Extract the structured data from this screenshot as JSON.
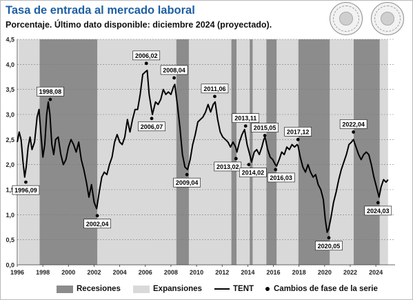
{
  "header": {
    "title": "Tasa de entrada al mercado laboral",
    "subtitle": "Porcentaje. Último dato disponible: diciembre 2024 (proyectado)."
  },
  "logos": [
    {
      "name": "seal-left",
      "text": "CÁMARA DE COMERCIO DE BOGOTÁ"
    },
    {
      "name": "seal-right",
      "text": "CÁMARA DE COMERCIO DE BOGOTÁ"
    }
  ],
  "legend": {
    "recessions": "Recesiones",
    "expansions": "Expansiones",
    "series": "TENT",
    "turning_points": "Cambios de fase de la serie"
  },
  "colors": {
    "title": "#1e5fa3",
    "recession": "#8c8c8c",
    "expansion": "#d9d9d9",
    "line": "#000000"
  },
  "chart_data": {
    "type": "line",
    "title": "Tasa de entrada al mercado laboral",
    "subtitle": "Porcentaje. Último dato disponible: diciembre 2024 (proyectado).",
    "xlim": [
      1996,
      2025.5
    ],
    "ylim": [
      0,
      4.5
    ],
    "x_ticks": [
      "1996",
      "1998",
      "2000",
      "2002",
      "2004",
      "2006",
      "2008",
      "2010",
      "2012",
      "2014",
      "2016",
      "2018",
      "2020",
      "2022",
      "2024"
    ],
    "y_ticks": [
      "0,0",
      "0,5",
      "1,0",
      "1,5",
      "2,0",
      "2,5",
      "3,0",
      "3,5",
      "4,0",
      "4,5"
    ],
    "grid": "horizontal",
    "legend_position": "bottom",
    "series": [
      {
        "name": "TENT",
        "color": "#000000",
        "points": [
          [
            1996.0,
            2.45
          ],
          [
            1996.15,
            2.65
          ],
          [
            1996.3,
            2.5
          ],
          [
            1996.45,
            2.05
          ],
          [
            1996.58,
            1.75
          ],
          [
            1996.7,
            1.95
          ],
          [
            1996.85,
            2.35
          ],
          [
            1997.0,
            2.55
          ],
          [
            1997.15,
            2.3
          ],
          [
            1997.35,
            2.45
          ],
          [
            1997.55,
            2.95
          ],
          [
            1997.7,
            3.1
          ],
          [
            1997.85,
            2.6
          ],
          [
            1998.0,
            2.15
          ],
          [
            1998.15,
            2.4
          ],
          [
            1998.3,
            3.0
          ],
          [
            1998.42,
            3.25
          ],
          [
            1998.55,
            3.0
          ],
          [
            1998.7,
            2.4
          ],
          [
            1998.85,
            2.2
          ],
          [
            1999.0,
            2.5
          ],
          [
            1999.2,
            2.55
          ],
          [
            1999.4,
            2.2
          ],
          [
            1999.6,
            2.0
          ],
          [
            1999.8,
            2.1
          ],
          [
            2000.0,
            2.35
          ],
          [
            2000.2,
            2.5
          ],
          [
            2000.4,
            2.4
          ],
          [
            2000.6,
            2.25
          ],
          [
            2000.8,
            2.45
          ],
          [
            2001.0,
            2.1
          ],
          [
            2001.2,
            1.9
          ],
          [
            2001.4,
            1.65
          ],
          [
            2001.6,
            1.35
          ],
          [
            2001.8,
            1.6
          ],
          [
            2002.0,
            1.25
          ],
          [
            2002.2,
            1.12
          ],
          [
            2002.4,
            1.45
          ],
          [
            2002.6,
            1.75
          ],
          [
            2002.8,
            1.85
          ],
          [
            2003.0,
            1.8
          ],
          [
            2003.2,
            2.0
          ],
          [
            2003.4,
            2.15
          ],
          [
            2003.6,
            2.45
          ],
          [
            2003.8,
            2.6
          ],
          [
            2004.0,
            2.45
          ],
          [
            2004.2,
            2.4
          ],
          [
            2004.4,
            2.55
          ],
          [
            2004.6,
            2.9
          ],
          [
            2004.8,
            2.65
          ],
          [
            2005.0,
            2.9
          ],
          [
            2005.2,
            3.1
          ],
          [
            2005.4,
            3.1
          ],
          [
            2005.6,
            3.4
          ],
          [
            2005.8,
            3.8
          ],
          [
            2006.0,
            3.85
          ],
          [
            2006.15,
            3.88
          ],
          [
            2006.3,
            3.4
          ],
          [
            2006.55,
            3.0
          ],
          [
            2006.8,
            3.25
          ],
          [
            2007.0,
            3.2
          ],
          [
            2007.2,
            3.3
          ],
          [
            2007.4,
            3.5
          ],
          [
            2007.6,
            3.4
          ],
          [
            2007.8,
            3.45
          ],
          [
            2008.0,
            3.4
          ],
          [
            2008.2,
            3.55
          ],
          [
            2008.3,
            3.6
          ],
          [
            2008.5,
            3.2
          ],
          [
            2008.7,
            2.75
          ],
          [
            2008.9,
            2.2
          ],
          [
            2009.1,
            1.95
          ],
          [
            2009.3,
            1.9
          ],
          [
            2009.5,
            2.1
          ],
          [
            2009.7,
            2.4
          ],
          [
            2009.9,
            2.6
          ],
          [
            2010.1,
            2.85
          ],
          [
            2010.3,
            2.9
          ],
          [
            2010.5,
            2.95
          ],
          [
            2010.7,
            3.05
          ],
          [
            2010.9,
            3.2
          ],
          [
            2011.1,
            3.05
          ],
          [
            2011.3,
            3.2
          ],
          [
            2011.45,
            3.25
          ],
          [
            2011.65,
            2.9
          ],
          [
            2011.85,
            2.65
          ],
          [
            2012.05,
            2.55
          ],
          [
            2012.25,
            2.5
          ],
          [
            2012.45,
            2.45
          ],
          [
            2012.65,
            2.35
          ],
          [
            2012.85,
            2.45
          ],
          [
            2013.05,
            2.35
          ],
          [
            2013.15,
            2.25
          ],
          [
            2013.35,
            2.45
          ],
          [
            2013.55,
            2.6
          ],
          [
            2013.75,
            2.7
          ],
          [
            2013.95,
            2.4
          ],
          [
            2014.15,
            2.2
          ],
          [
            2014.3,
            2.05
          ],
          [
            2014.5,
            2.25
          ],
          [
            2014.7,
            2.3
          ],
          [
            2014.9,
            2.2
          ],
          [
            2015.1,
            2.35
          ],
          [
            2015.25,
            2.5
          ],
          [
            2015.35,
            2.55
          ],
          [
            2015.55,
            2.3
          ],
          [
            2015.75,
            2.15
          ],
          [
            2015.95,
            2.1
          ],
          [
            2016.15,
            2.0
          ],
          [
            2016.25,
            1.97
          ],
          [
            2016.45,
            2.1
          ],
          [
            2016.65,
            2.25
          ],
          [
            2016.85,
            2.2
          ],
          [
            2017.05,
            2.35
          ],
          [
            2017.25,
            2.3
          ],
          [
            2017.45,
            2.4
          ],
          [
            2017.65,
            2.35
          ],
          [
            2017.85,
            2.4
          ],
          [
            2017.92,
            2.38
          ],
          [
            2018.1,
            2.15
          ],
          [
            2018.3,
            1.95
          ],
          [
            2018.5,
            1.85
          ],
          [
            2018.7,
            2.0
          ],
          [
            2018.9,
            1.85
          ],
          [
            2019.1,
            1.75
          ],
          [
            2019.3,
            1.8
          ],
          [
            2019.5,
            1.6
          ],
          [
            2019.7,
            1.5
          ],
          [
            2019.9,
            1.3
          ],
          [
            2020.05,
            0.9
          ],
          [
            2020.2,
            0.65
          ],
          [
            2020.32,
            0.72
          ],
          [
            2020.5,
            0.95
          ],
          [
            2020.7,
            1.25
          ],
          [
            2020.9,
            1.45
          ],
          [
            2021.1,
            1.7
          ],
          [
            2021.3,
            1.9
          ],
          [
            2021.5,
            2.05
          ],
          [
            2021.7,
            2.2
          ],
          [
            2021.9,
            2.4
          ],
          [
            2022.1,
            2.45
          ],
          [
            2022.25,
            2.5
          ],
          [
            2022.45,
            2.35
          ],
          [
            2022.65,
            2.2
          ],
          [
            2022.85,
            2.1
          ],
          [
            2023.05,
            2.2
          ],
          [
            2023.25,
            2.25
          ],
          [
            2023.45,
            2.2
          ],
          [
            2023.65,
            2.0
          ],
          [
            2023.85,
            1.75
          ],
          [
            2024.05,
            1.55
          ],
          [
            2024.25,
            1.35
          ],
          [
            2024.4,
            1.55
          ],
          [
            2024.6,
            1.7
          ],
          [
            2024.8,
            1.65
          ],
          [
            2024.95,
            1.7
          ]
        ]
      }
    ],
    "recessions": [
      [
        1997.75,
        2002.25
      ],
      [
        2008.42,
        2009.4
      ],
      [
        2012.72,
        2013.12
      ],
      [
        2014.15,
        2014.38
      ],
      [
        2015.45,
        2016.25
      ],
      [
        2017.95,
        2020.4
      ],
      [
        2022.27,
        2024.3
      ]
    ],
    "expansions": [
      [
        1996.1,
        1997.75
      ],
      [
        2002.25,
        2008.42
      ],
      [
        2009.4,
        2012.72
      ],
      [
        2013.12,
        2014.15
      ],
      [
        2014.38,
        2015.45
      ],
      [
        2016.25,
        2017.95
      ],
      [
        2020.4,
        2022.27
      ],
      [
        2024.3,
        2024.95
      ]
    ],
    "turning_points": [
      {
        "label": "1996,09",
        "x": 1996.67,
        "y": 1.65
      },
      {
        "label": "1998,08",
        "x": 1998.58,
        "y": 3.3
      },
      {
        "label": "2002,04",
        "x": 2002.25,
        "y": 0.98
      },
      {
        "label": "2006,02",
        "x": 2006.08,
        "y": 4.02
      },
      {
        "label": "2006,07",
        "x": 2006.5,
        "y": 2.92
      },
      {
        "label": "2008,04",
        "x": 2008.25,
        "y": 3.73
      },
      {
        "label": "2009,04",
        "x": 2009.25,
        "y": 1.8
      },
      {
        "label": "2011,06",
        "x": 2011.42,
        "y": 3.36
      },
      {
        "label": "2013,02",
        "x": 2013.08,
        "y": 2.12
      },
      {
        "label": "2013,11",
        "x": 2013.83,
        "y": 2.77
      },
      {
        "label": "2014,02",
        "x": 2014.08,
        "y": 2.0
      },
      {
        "label": "2015,05",
        "x": 2015.33,
        "y": 2.58
      },
      {
        "label": "2016,03",
        "x": 2016.17,
        "y": 1.9
      },
      {
        "label": "2017,12",
        "x": 2017.92,
        "y": 2.5
      },
      {
        "label": "2020,05",
        "x": 2020.33,
        "y": 0.54
      },
      {
        "label": "2022,04",
        "x": 2022.25,
        "y": 2.65
      },
      {
        "label": "2024,03",
        "x": 2024.17,
        "y": 1.24
      }
    ]
  }
}
